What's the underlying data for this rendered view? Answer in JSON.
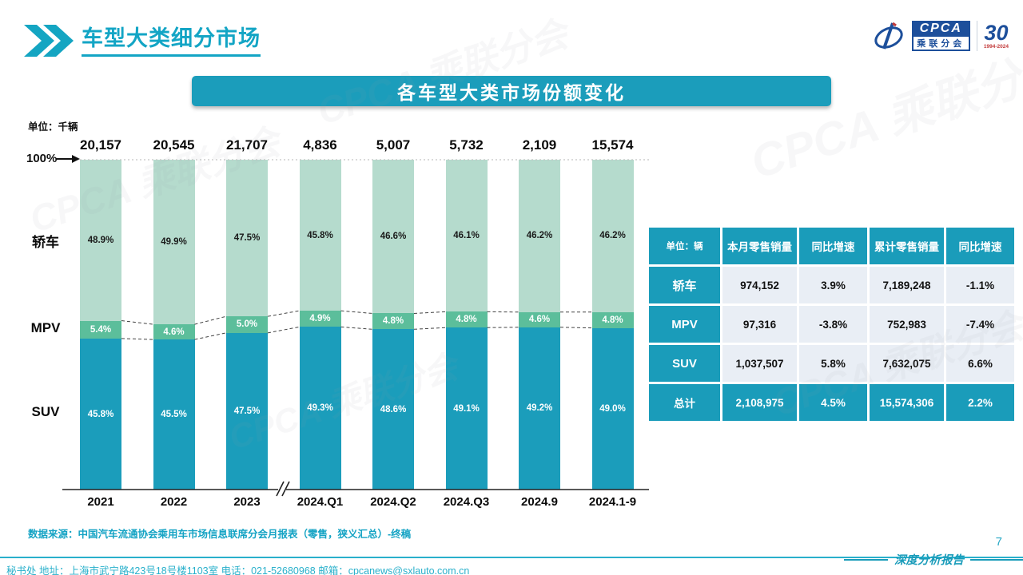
{
  "header": {
    "title": "车型大类细分市场",
    "logo": {
      "cpca": "CPCA",
      "sub": "乘联分会",
      "anniv_number": "30",
      "anniv_years": "1994-2024"
    }
  },
  "banner": {
    "title": "各车型大类市场份额变化"
  },
  "watermark": "CPCA 乘联分会",
  "chart_data": {
    "type": "bar",
    "variant": "100%-stacked-column",
    "title": "各车型大类市场份额变化",
    "unit_label": "单位：千辆",
    "axis_label_100": "100%",
    "axis_break_between": [
      "2023",
      "2024.Q1"
    ],
    "categories": [
      "2021",
      "2022",
      "2023",
      "2024.Q1",
      "2024.Q2",
      "2024.Q3",
      "2024.9",
      "2024.1-9"
    ],
    "totals": [
      "20,157",
      "20,545",
      "21,707",
      "4,836",
      "5,007",
      "5,732",
      "2,109",
      "15,574"
    ],
    "series": [
      {
        "name": "SUV",
        "color": "#1b9dbb",
        "text_color": "#ffffff",
        "values": [
          45.8,
          45.5,
          47.5,
          49.3,
          48.6,
          49.1,
          49.2,
          49.0
        ],
        "labels": [
          "45.8%",
          "45.5%",
          "47.5%",
          "49.3%",
          "48.6%",
          "49.1%",
          "49.2%",
          "49.0%"
        ]
      },
      {
        "name": "MPV",
        "color": "#5cbe9b",
        "text_color": "#ffffff",
        "values": [
          5.4,
          4.6,
          5.0,
          4.9,
          4.8,
          4.8,
          4.6,
          4.8
        ],
        "labels": [
          "5.4%",
          "4.6%",
          "5.0%",
          "4.9%",
          "4.8%",
          "4.8%",
          "4.6%",
          "4.8%"
        ]
      },
      {
        "name": "轿车",
        "color": "#b5dbcd",
        "text_color": "#1a1a1a",
        "values": [
          48.9,
          49.9,
          47.5,
          45.8,
          46.6,
          46.1,
          46.2,
          46.2
        ],
        "labels": [
          "48.9%",
          "49.9%",
          "47.5%",
          "45.8%",
          "46.6%",
          "46.1%",
          "46.2%",
          "46.2%"
        ]
      }
    ],
    "ylim": [
      0,
      100
    ],
    "grid": false,
    "legend_position": "left-category-labels"
  },
  "table": {
    "unit": "单位：辆",
    "columns": [
      "本月零售销量",
      "同比增速",
      "累计零售销量",
      "同比增速"
    ],
    "rows": [
      {
        "label": "轿车",
        "values": [
          "974,152",
          "3.9%",
          "7,189,248",
          "-1.1%"
        ],
        "total": false
      },
      {
        "label": "MPV",
        "values": [
          "97,316",
          "-3.8%",
          "752,983",
          "-7.4%"
        ],
        "total": false
      },
      {
        "label": "SUV",
        "values": [
          "1,037,507",
          "5.8%",
          "7,632,075",
          "6.6%"
        ],
        "total": false
      },
      {
        "label": "总计",
        "values": [
          "2,108,975",
          "4.5%",
          "15,574,306",
          "2.2%"
        ],
        "total": true
      }
    ]
  },
  "source": {
    "text": "数据来源：中国汽车流通协会乘用车市场信息联席分会月报表（零售，狭义汇总）-终稿"
  },
  "footer": {
    "contact_line": "秘书处  地址：上海市武宁路423号18号楼1103室 电话：021-52680968  邮箱：cpcanews@sxlauto.com.cn",
    "page_number": "7",
    "report_label": "深度分析报告"
  },
  "colors": {
    "accent_teal": "#1b9dbb",
    "title_teal": "#13a5c5",
    "suv_bar": "#1b9dbb",
    "mpv_bar": "#5cbe9b",
    "sedan_bar": "#b5dbcd",
    "table_cell_bg": "#e9eef5",
    "logo_blue": "#1d4f9b",
    "footer_teal": "#29b0cb"
  }
}
